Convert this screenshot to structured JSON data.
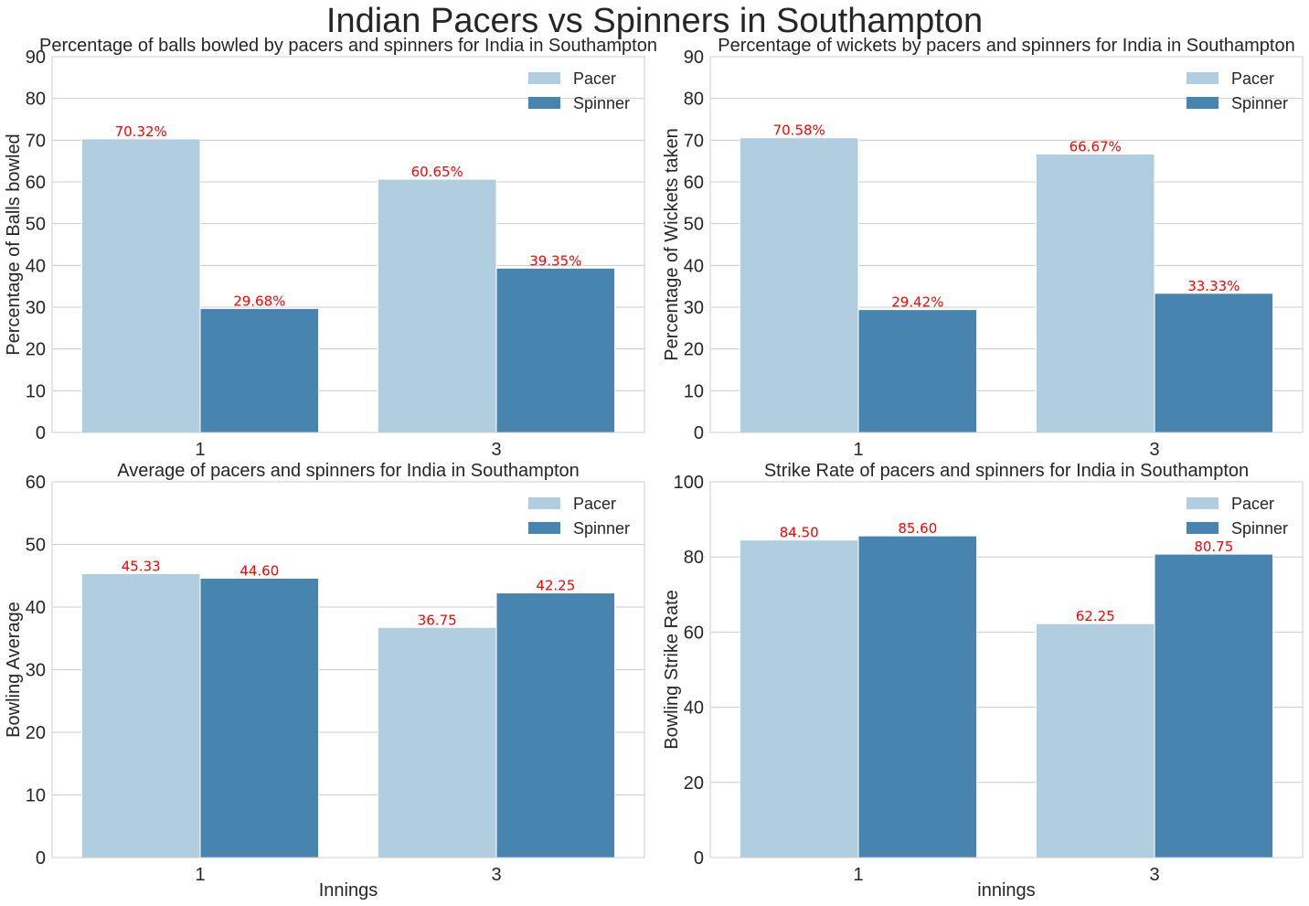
{
  "suptitle": "Indian Pacers vs Spinners in Southampton",
  "colors": {
    "pacer": "#b1cde0",
    "spinner": "#4884b0",
    "label": "#ff0000"
  },
  "legend": [
    "Pacer",
    "Spinner"
  ],
  "chart_data": [
    {
      "type": "bar",
      "title": "Percentage of balls bowled by pacers and spinners for India in Southampton",
      "xlabel": "",
      "ylabel": "Percentage of Balls bowled",
      "categories": [
        "1",
        "3"
      ],
      "ylim": [
        0,
        90
      ],
      "yticks": [
        0,
        10,
        20,
        30,
        40,
        50,
        60,
        70,
        80,
        90
      ],
      "ytick_labels": [
        "0",
        "10",
        "20",
        "30",
        "40",
        "50",
        "60",
        "70",
        "80",
        "90"
      ],
      "series": [
        {
          "name": "Pacer",
          "values": [
            70.32,
            60.65
          ],
          "labels": [
            "70.32%",
            "60.65%"
          ]
        },
        {
          "name": "Spinner",
          "values": [
            29.68,
            39.35
          ],
          "labels": [
            "29.68%",
            "39.35%"
          ]
        }
      ],
      "legend_position": "top-right"
    },
    {
      "type": "bar",
      "title": "Percentage of wickets by pacers and spinners for India in Southampton",
      "xlabel": "",
      "ylabel": "Percentage of Wickets taken",
      "categories": [
        "1",
        "3"
      ],
      "ylim": [
        0,
        90
      ],
      "yticks": [
        0,
        10,
        20,
        30,
        40,
        50,
        60,
        70,
        80,
        90
      ],
      "ytick_labels": [
        "0",
        "10",
        "20",
        "30",
        "40",
        "50",
        "60",
        "70",
        "80",
        "90"
      ],
      "series": [
        {
          "name": "Pacer",
          "values": [
            70.58,
            66.67
          ],
          "labels": [
            "70.58%",
            "66.67%"
          ]
        },
        {
          "name": "Spinner",
          "values": [
            29.42,
            33.33
          ],
          "labels": [
            "29.42%",
            "33.33%"
          ]
        }
      ],
      "legend_position": "top-right"
    },
    {
      "type": "bar",
      "title": "Average of pacers and spinners for India in Southampton",
      "xlabel": "Innings",
      "ylabel": "Bowling Average",
      "categories": [
        "1",
        "3"
      ],
      "ylim": [
        0,
        60
      ],
      "yticks": [
        0,
        10,
        20,
        30,
        40,
        50,
        60
      ],
      "ytick_labels": [
        "0",
        "10",
        "20",
        "30",
        "40",
        "50",
        "60"
      ],
      "series": [
        {
          "name": "Pacer",
          "values": [
            45.33,
            36.75
          ],
          "labels": [
            "45.33",
            "36.75"
          ]
        },
        {
          "name": "Spinner",
          "values": [
            44.6,
            42.25
          ],
          "labels": [
            "44.60",
            "42.25"
          ]
        }
      ],
      "legend_position": "top-right"
    },
    {
      "type": "bar",
      "title": "Strike Rate of pacers and spinners for India in Southampton",
      "xlabel": "innings",
      "ylabel": "Bowling Strike Rate",
      "categories": [
        "1",
        "3"
      ],
      "ylim": [
        0,
        100
      ],
      "yticks": [
        0,
        20,
        40,
        60,
        80,
        100
      ],
      "ytick_labels": [
        "0",
        "20",
        "40",
        "60",
        "80",
        "100"
      ],
      "series": [
        {
          "name": "Pacer",
          "values": [
            84.5,
            62.25
          ],
          "labels": [
            "84.50",
            "62.25"
          ]
        },
        {
          "name": "Spinner",
          "values": [
            85.6,
            80.75
          ],
          "labels": [
            "85.60",
            "80.75"
          ]
        }
      ],
      "legend_position": "top-right"
    }
  ]
}
